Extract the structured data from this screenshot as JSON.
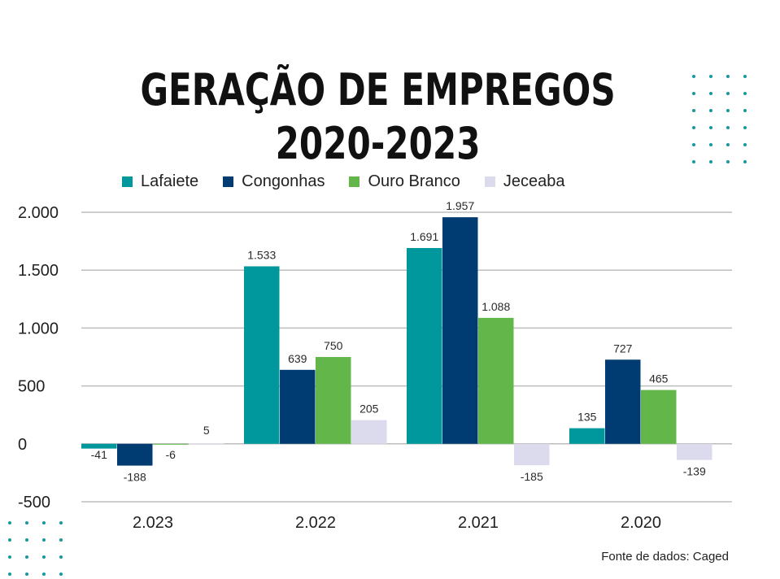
{
  "title": "GERAÇÃO DE EMPREGOS 2020-2023",
  "source": "Fonte de dados: Caged",
  "chart_data": {
    "type": "bar",
    "title": "GERAÇÃO DE EMPREGOS 2020-2023",
    "categories": [
      "2.023",
      "2.022",
      "2.021",
      "2.020"
    ],
    "series": [
      {
        "name": "Lafaiete",
        "color": "#00979d",
        "values": [
          -41,
          1533,
          1691,
          135
        ],
        "labels": [
          "-41",
          "1.533",
          "1.691",
          "135"
        ]
      },
      {
        "name": "Congonhas",
        "color": "#003c71",
        "values": [
          -188,
          639,
          1957,
          727
        ],
        "labels": [
          "-188",
          "639",
          "1.957",
          "727"
        ]
      },
      {
        "name": "Ouro Branco",
        "color": "#63b74a",
        "values": [
          -6,
          750,
          1088,
          465
        ],
        "labels": [
          "-6",
          "750",
          "1.088",
          "465"
        ]
      },
      {
        "name": "Jeceaba",
        "color": "#dcdbee",
        "values": [
          5,
          205,
          -185,
          -139
        ],
        "labels": [
          "5",
          "205",
          "-185",
          "-139"
        ]
      }
    ],
    "yticks": [
      2000,
      1500,
      1000,
      500,
      0,
      -500
    ],
    "ytick_labels": [
      "2.000",
      "1.500",
      "1.000",
      "500",
      "0",
      "-500"
    ],
    "ylim": [
      -500,
      2000
    ],
    "grid": true,
    "legend": "top",
    "xlabel": "",
    "ylabel": ""
  }
}
